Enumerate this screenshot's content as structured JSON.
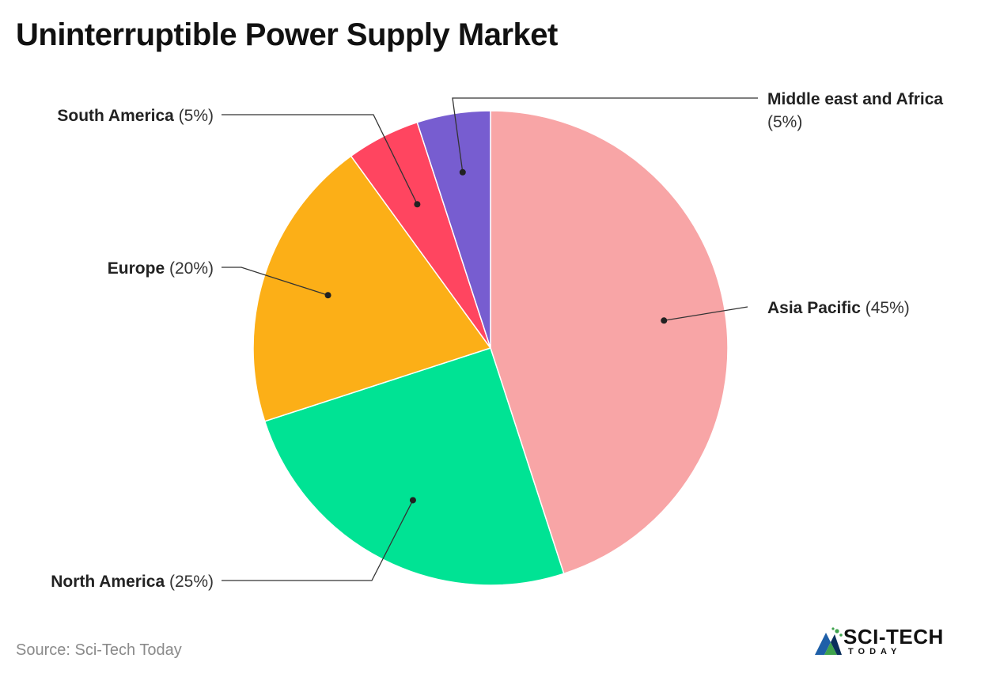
{
  "chart_data": {
    "type": "pie",
    "title": "Uninterruptible Power Supply Market",
    "slices": [
      {
        "name": "Asia Pacific",
        "value": 45,
        "value_label": "(45%)",
        "color": "#f8a5a6"
      },
      {
        "name": "North America",
        "value": 25,
        "value_label": "(25%)",
        "color": "#00e394"
      },
      {
        "name": "Europe",
        "value": 20,
        "value_label": "(20%)",
        "color": "#fcaf17"
      },
      {
        "name": "South America",
        "value": 5,
        "value_label": "(5%)",
        "color": "#ff4560"
      },
      {
        "name": "Middle east and Africa",
        "value": 5,
        "value_label": "(5%)",
        "color": "#775dd0"
      }
    ],
    "start_angle_deg": 0,
    "direction": "clockwise",
    "legend": "none"
  },
  "footer": {
    "source": "Source: Sci-Tech Today",
    "logo_brand": "SCI-TECH",
    "logo_tagline": "TODAY"
  }
}
